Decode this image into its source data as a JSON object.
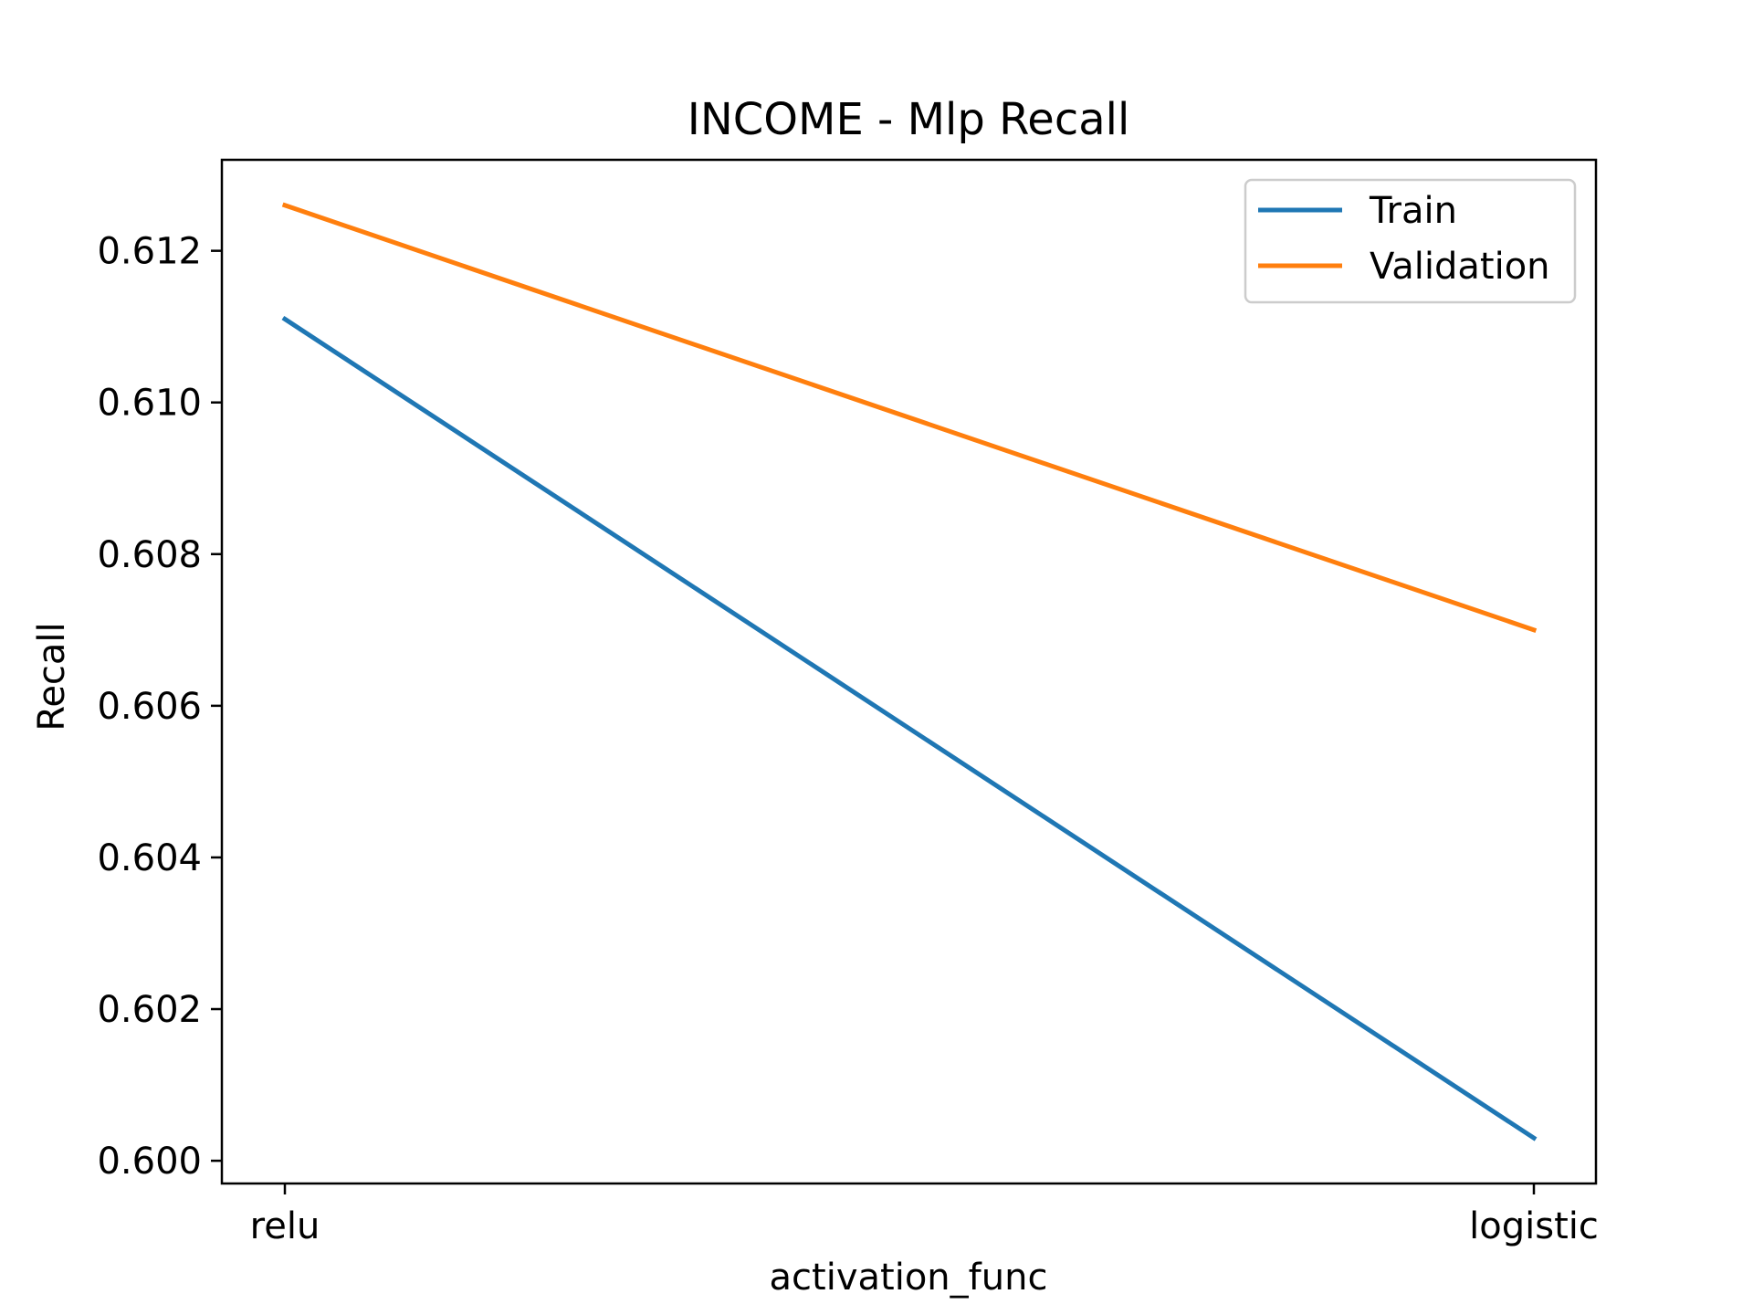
{
  "chart_data": {
    "type": "line",
    "title": "INCOME - Mlp Recall",
    "xlabel": "activation_func",
    "ylabel": "Recall",
    "categories": [
      "relu",
      "logistic"
    ],
    "series": [
      {
        "name": "Train",
        "values": [
          0.6111,
          0.6003
        ],
        "color": "#1f77b4"
      },
      {
        "name": "Validation",
        "values": [
          0.6126,
          0.607
        ],
        "color": "#ff7f0e"
      }
    ],
    "ylim": [
      0.5997,
      0.6132
    ],
    "yticks": [
      "0.600",
      "0.602",
      "0.604",
      "0.606",
      "0.608",
      "0.610",
      "0.612"
    ],
    "grid": false,
    "legend_position": "top-right"
  }
}
